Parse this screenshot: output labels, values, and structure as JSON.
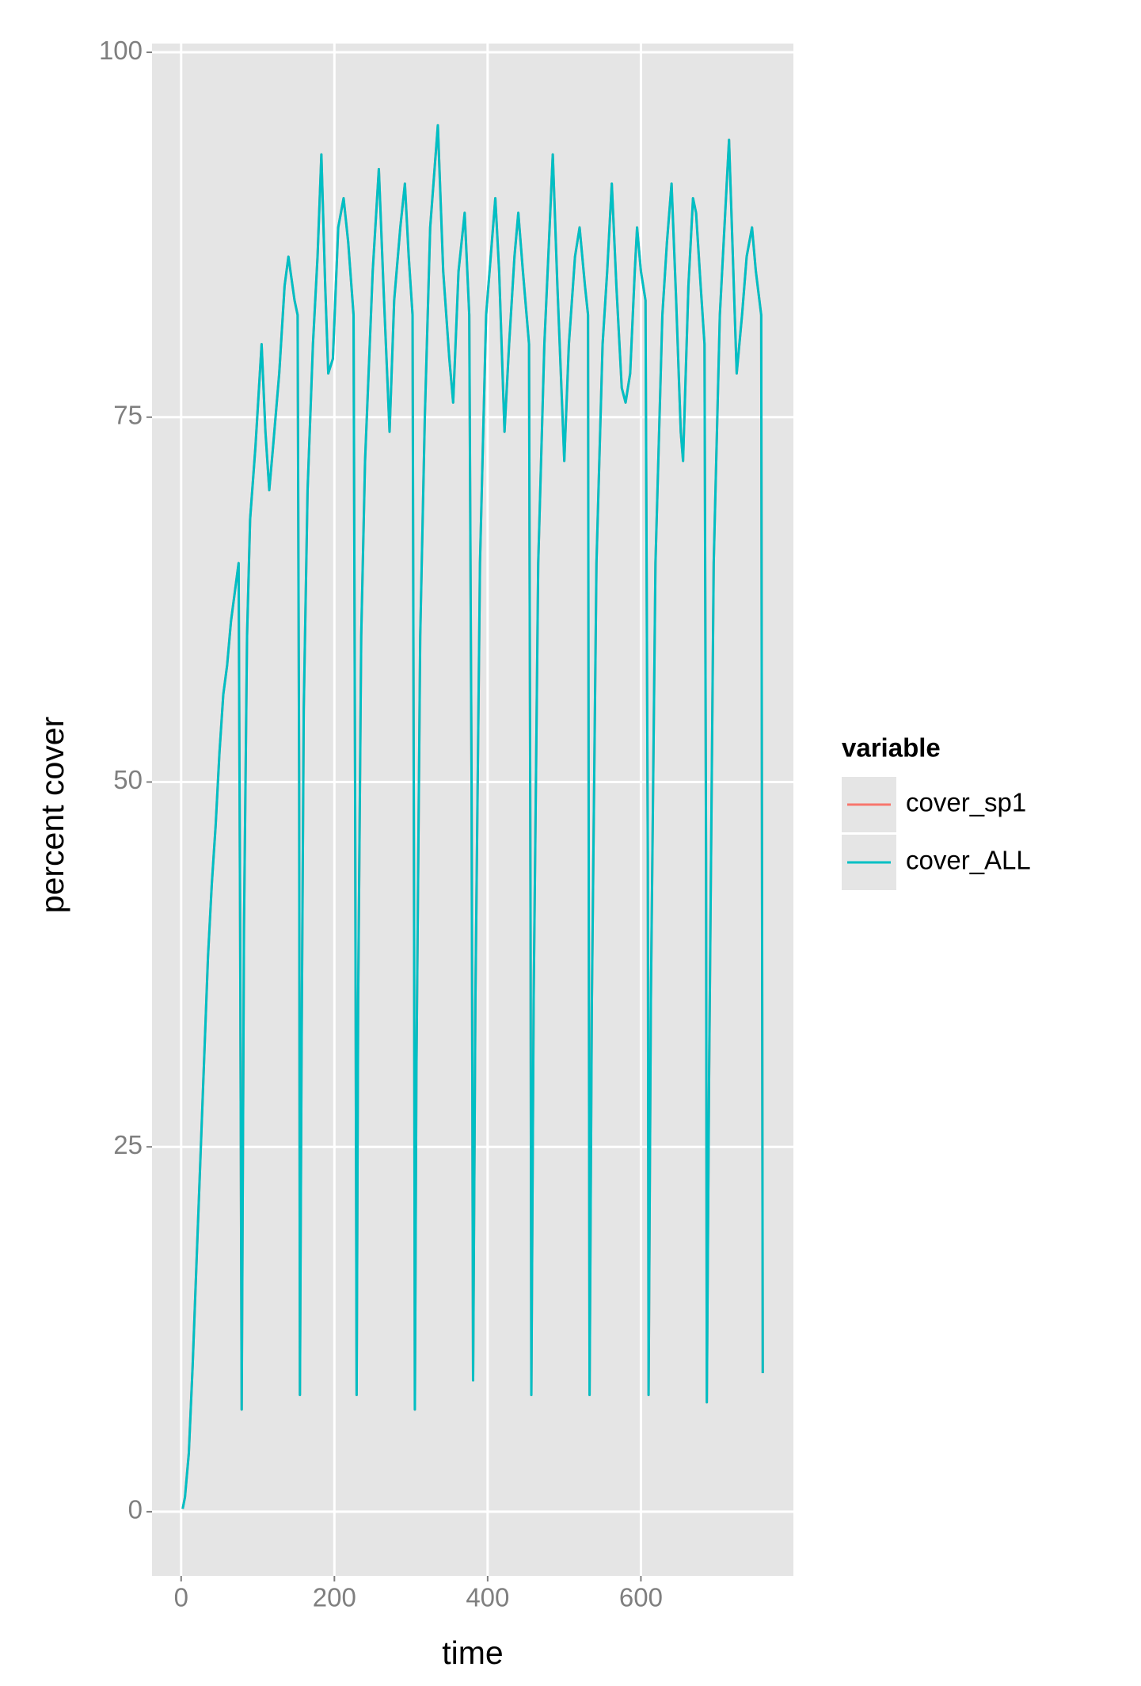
{
  "chart_data": {
    "type": "line",
    "x_label": "time",
    "y_label": "percent cover",
    "legend_title": "variable",
    "legend_position": "right",
    "x": [
      2,
      5,
      10,
      15,
      20,
      25,
      30,
      35,
      40,
      45,
      50,
      55,
      60,
      65,
      70,
      75,
      77,
      79,
      82,
      86,
      90,
      97,
      105,
      110,
      115,
      120,
      128,
      135,
      140,
      148,
      152,
      154,
      155,
      157,
      160,
      165,
      172,
      178,
      183,
      188,
      192,
      198,
      205,
      212,
      218,
      225,
      227,
      229,
      231,
      235,
      240,
      250,
      258,
      264,
      272,
      278,
      286,
      292,
      297,
      302,
      304,
      305,
      307,
      312,
      318,
      325,
      335,
      342,
      350,
      355,
      362,
      370,
      376,
      379,
      381,
      384,
      390,
      398,
      404,
      410,
      415,
      422,
      428,
      435,
      440,
      446,
      454,
      456,
      457,
      460,
      466,
      474,
      480,
      485,
      491,
      500,
      506,
      514,
      520,
      527,
      531,
      532,
      533,
      536,
      542,
      550,
      556,
      562,
      568,
      575,
      580,
      586,
      592,
      595,
      600,
      606,
      609,
      610,
      613,
      619,
      628,
      634,
      640,
      646,
      652,
      655,
      662,
      668,
      672,
      678,
      683,
      685,
      686,
      689,
      695,
      703,
      709,
      715,
      720,
      725,
      732,
      738,
      745,
      750,
      757,
      759
    ],
    "series": [
      {
        "name": "cover_sp1",
        "color": "#f8766d",
        "values": [
          0.2,
          1,
          4,
          10,
          17,
          24,
          31,
          38,
          43,
          47,
          52,
          56,
          58,
          61,
          63,
          65,
          40,
          7,
          40,
          60,
          68,
          73,
          80,
          74,
          70,
          73,
          78,
          84,
          86,
          83,
          82,
          50,
          8,
          30,
          55,
          70,
          80,
          86,
          93,
          84,
          78,
          79,
          88,
          90,
          87,
          82,
          50,
          8,
          35,
          60,
          72,
          85,
          92,
          84,
          74,
          83,
          88,
          91,
          86,
          82,
          40,
          7,
          30,
          60,
          75,
          88,
          95,
          85,
          79,
          76,
          85,
          89,
          82,
          50,
          9,
          35,
          65,
          82,
          86,
          90,
          85,
          74,
          80,
          86,
          89,
          85,
          80,
          40,
          8,
          35,
          65,
          80,
          87,
          93,
          84,
          72,
          80,
          86,
          88,
          84,
          82,
          40,
          8,
          35,
          65,
          80,
          85,
          91,
          84,
          77,
          76,
          78,
          85,
          88,
          85,
          83,
          45,
          8,
          35,
          65,
          82,
          87,
          91,
          83,
          74,
          72,
          84,
          90,
          89,
          84,
          80,
          45,
          7.5,
          30,
          65,
          82,
          88,
          94,
          86,
          78,
          82,
          86,
          88,
          85,
          82,
          9.5
        ]
      },
      {
        "name": "cover_ALL",
        "color": "#00bfc4",
        "values": [
          0.2,
          1,
          4,
          10,
          17,
          24,
          31,
          38,
          43,
          47,
          52,
          56,
          58,
          61,
          63,
          65,
          40,
          7,
          40,
          60,
          68,
          73,
          80,
          74,
          70,
          73,
          78,
          84,
          86,
          83,
          82,
          50,
          8,
          30,
          55,
          70,
          80,
          86,
          93,
          84,
          78,
          79,
          88,
          90,
          87,
          82,
          50,
          8,
          35,
          60,
          72,
          85,
          92,
          84,
          74,
          83,
          88,
          91,
          86,
          82,
          40,
          7,
          30,
          60,
          75,
          88,
          95,
          85,
          79,
          76,
          85,
          89,
          82,
          50,
          9,
          35,
          65,
          82,
          86,
          90,
          85,
          74,
          80,
          86,
          89,
          85,
          80,
          40,
          8,
          35,
          65,
          80,
          87,
          93,
          84,
          72,
          80,
          86,
          88,
          84,
          82,
          40,
          8,
          35,
          65,
          80,
          85,
          91,
          84,
          77,
          76,
          78,
          85,
          88,
          85,
          83,
          45,
          8,
          35,
          65,
          82,
          87,
          91,
          83,
          74,
          72,
          84,
          90,
          89,
          84,
          80,
          45,
          7.5,
          30,
          65,
          82,
          88,
          94,
          86,
          78,
          82,
          86,
          88,
          85,
          82,
          9.5
        ]
      }
    ],
    "xlim": [
      -38,
      799
    ],
    "ylim": [
      -4.4,
      100.6
    ],
    "xticks": [
      0,
      200,
      400,
      600
    ],
    "yticks": [
      0,
      25,
      50,
      75,
      100
    ],
    "grid": true,
    "panel_color": "#e5e5e5"
  }
}
